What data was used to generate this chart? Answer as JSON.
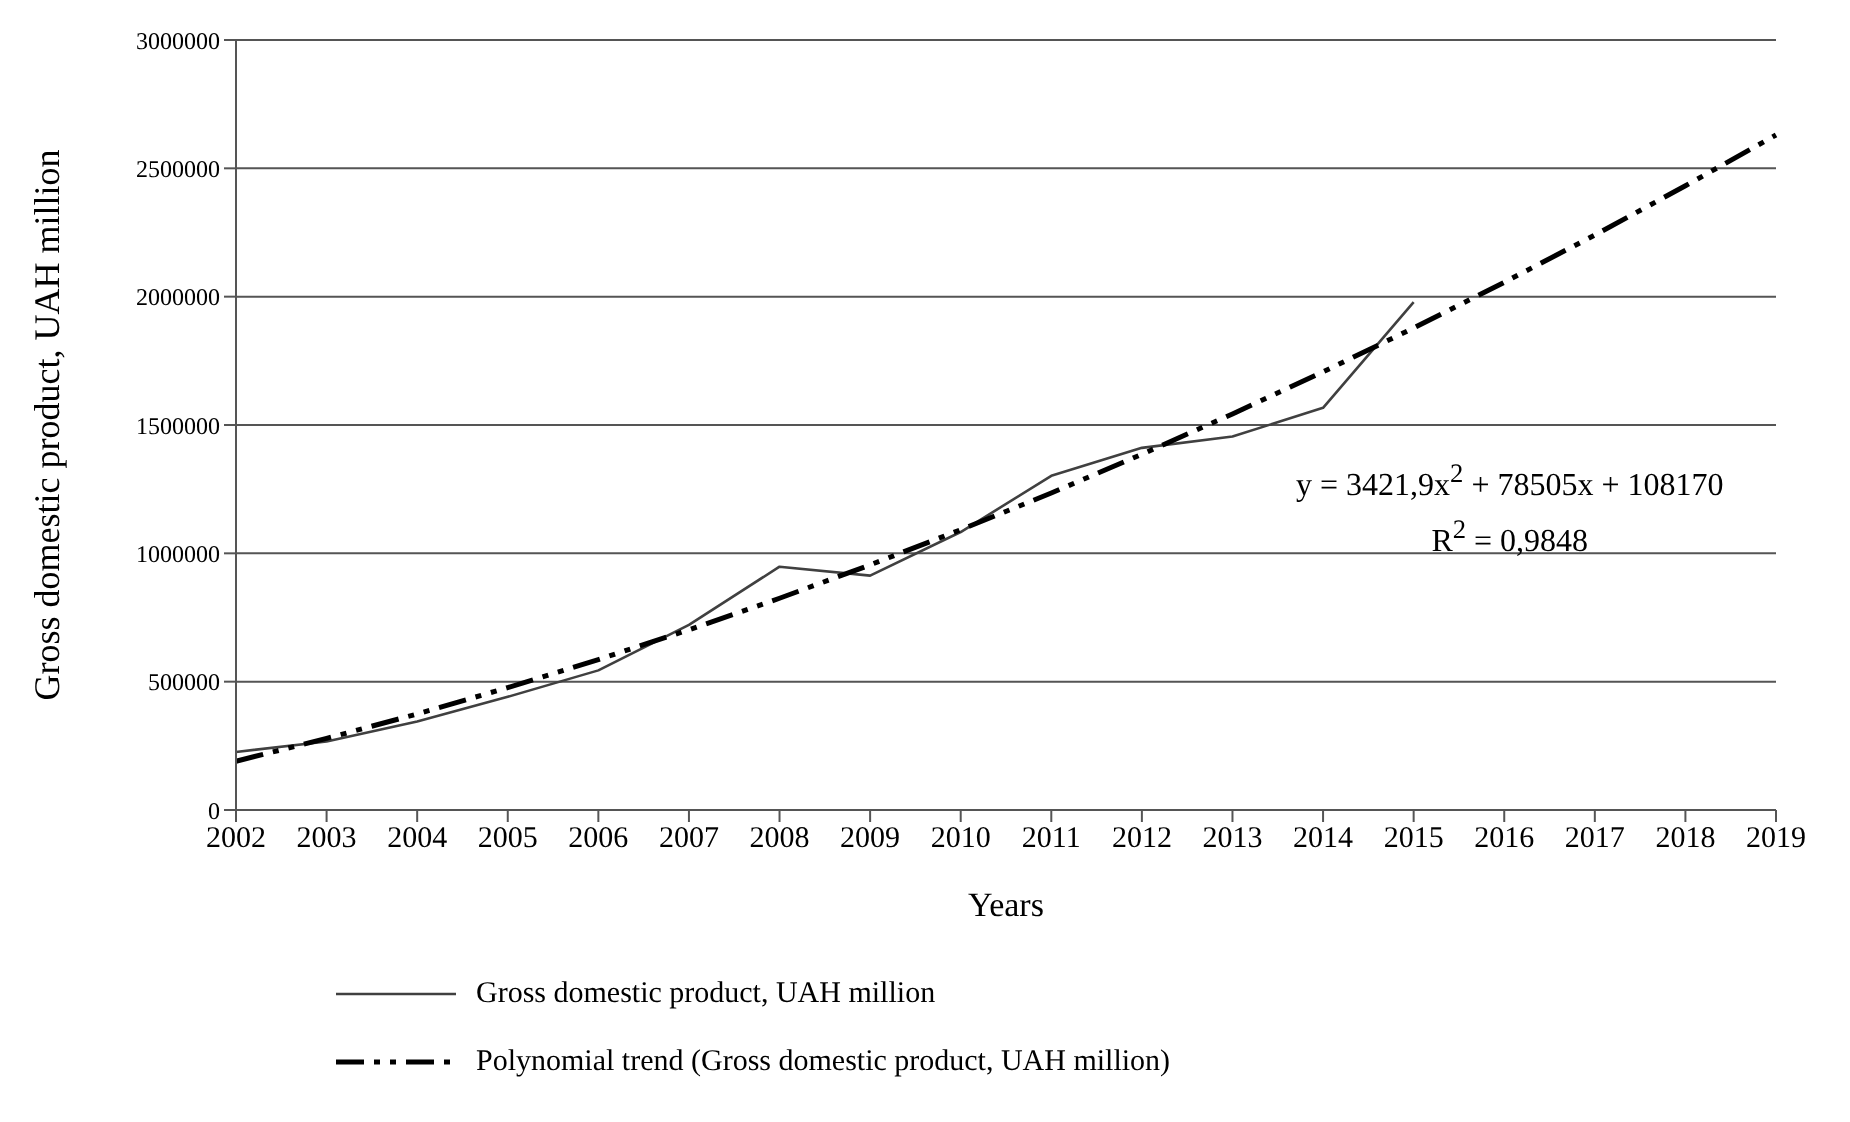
{
  "chart_data": {
    "type": "line",
    "xlabel": "Years",
    "ylabel": "Gross domestic product,  UAH million",
    "categories": [
      "2002",
      "2003",
      "2004",
      "2005",
      "2006",
      "2007",
      "2008",
      "2009",
      "2010",
      "2011",
      "2012",
      "2013",
      "2014",
      "2015",
      "2016",
      "2017",
      "2018",
      "2019"
    ],
    "series": [
      {
        "name": "Gross domestic product, UAH million",
        "color": "#404040",
        "line_style": "solid",
        "values": [
          226000,
          267000,
          345000,
          441000,
          544000,
          721000,
          948000,
          913000,
          1083000,
          1302000,
          1411000,
          1455000,
          1567000,
          1979000,
          null,
          null,
          null,
          null
        ]
      },
      {
        "name": "Polynomial trend (Gross domestic product, UAH million)",
        "color": "#000000",
        "line_style": "dashed",
        "values": [
          190000,
          279000,
          374000,
          477000,
          586000,
          702000,
          825000,
          955000,
          1092000,
          1235000,
          1386000,
          1543000,
          1707000,
          1878000,
          2056000,
          2240000,
          2432000,
          2630000
        ]
      }
    ],
    "ylim": [
      0,
      3000000
    ],
    "yticks": [
      0,
      500000,
      1000000,
      1500000,
      2000000,
      2500000,
      3000000
    ],
    "grid": "y",
    "legend": "bottom",
    "marker": "none",
    "annotations": [
      "y = 3421,9x$^{2}$ + 78505x + 108170",
      "R$^{2}$ = 0,9848"
    ]
  }
}
